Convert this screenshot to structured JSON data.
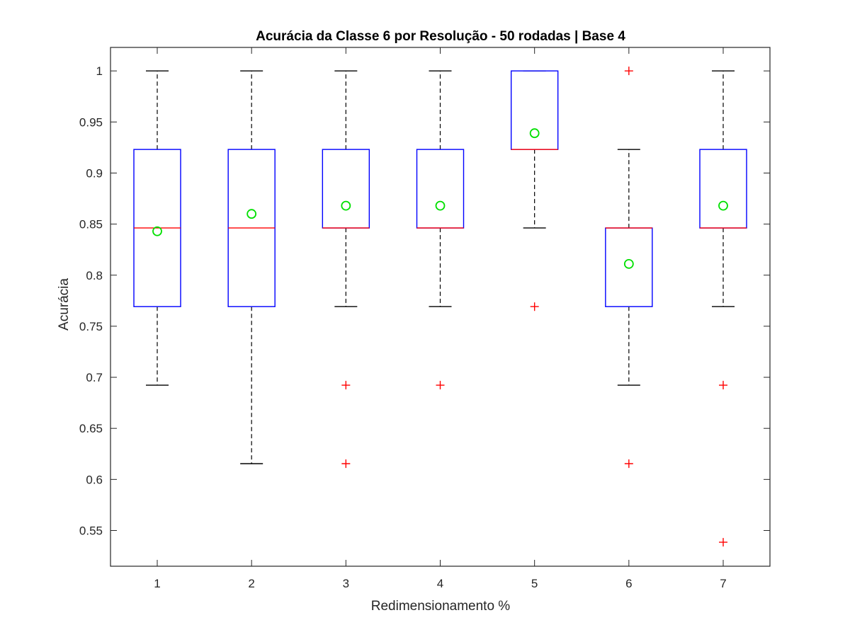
{
  "chart_data": {
    "type": "box",
    "title": "Acurácia da Classe 6 por Resolução - 50 rodadas | Base 4",
    "xlabel": "Redimensionamento %",
    "ylabel": "Acurácia",
    "categories": [
      "1",
      "2",
      "3",
      "4",
      "5",
      "6",
      "7"
    ],
    "ylim": [
      0.515,
      1.023
    ],
    "yticks": [
      0.55,
      0.6,
      0.65,
      0.7,
      0.75,
      0.8,
      0.85,
      0.9,
      0.95,
      1
    ],
    "ytick_labels": [
      "0.55",
      "0.6",
      "0.65",
      "0.7",
      "0.75",
      "0.8",
      "0.85",
      "0.9",
      "0.95",
      "1"
    ],
    "grid": false,
    "boxes": [
      {
        "category": "1",
        "whisker_low": 0.6923,
        "q1": 0.7692,
        "median": 0.8462,
        "q3": 0.9231,
        "whisker_high": 1.0,
        "mean": 0.843,
        "outliers": []
      },
      {
        "category": "2",
        "whisker_low": 0.6154,
        "q1": 0.7692,
        "median": 0.8462,
        "q3": 0.9231,
        "whisker_high": 1.0,
        "mean": 0.86,
        "outliers": []
      },
      {
        "category": "3",
        "whisker_low": 0.7692,
        "q1": 0.8462,
        "median": 0.8462,
        "q3": 0.9231,
        "whisker_high": 1.0,
        "mean": 0.868,
        "outliers": [
          0.6923,
          0.6154
        ]
      },
      {
        "category": "4",
        "whisker_low": 0.7692,
        "q1": 0.8462,
        "median": 0.8462,
        "q3": 0.9231,
        "whisker_high": 1.0,
        "mean": 0.868,
        "outliers": [
          0.6923
        ]
      },
      {
        "category": "5",
        "whisker_low": 0.8462,
        "q1": 0.9231,
        "median": 0.9231,
        "q3": 1.0,
        "whisker_high": 1.0,
        "mean": 0.939,
        "outliers": [
          0.7692
        ]
      },
      {
        "category": "6",
        "whisker_low": 0.6923,
        "q1": 0.7692,
        "median": 0.8462,
        "q3": 0.8462,
        "whisker_high": 0.9231,
        "mean": 0.811,
        "outliers": [
          1.0,
          0.6154
        ]
      },
      {
        "category": "7",
        "whisker_low": 0.7692,
        "q1": 0.8462,
        "median": 0.8462,
        "q3": 0.9231,
        "whisker_high": 1.0,
        "mean": 0.868,
        "outliers": [
          0.6923,
          0.5385
        ]
      }
    ],
    "colors": {
      "box": "#0000ff",
      "median": "#ff0000",
      "whisker": "#000000",
      "outlier": "#ff0000",
      "mean": "#00e000",
      "axes": "#262626"
    }
  }
}
